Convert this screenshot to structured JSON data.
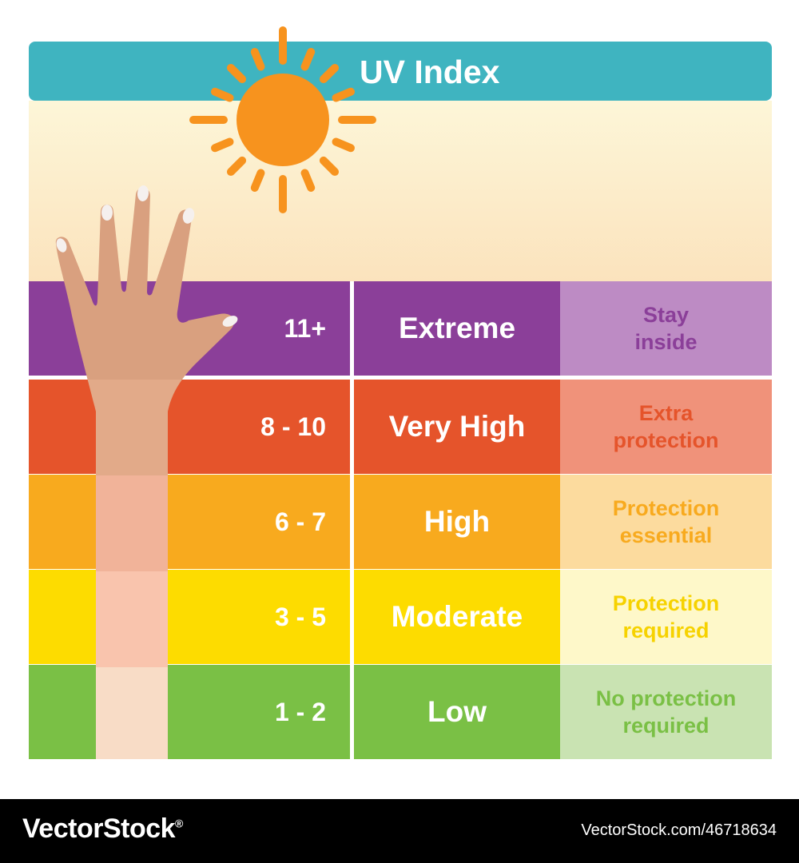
{
  "title": "UV Index",
  "colors": {
    "title_bar": "#3fb4c0",
    "sky_top": "#fdf6d8",
    "sky_bottom": "#fbe3bd",
    "sun": "#f7931e",
    "footer": "#000000"
  },
  "levels": [
    {
      "range": "11+",
      "level": "Extreme",
      "advice_line1": "Stay",
      "advice_line2": "inside",
      "main_color": "#8b3f99",
      "advice_bg": "#bd8bc4",
      "advice_color": "#8b3f99"
    },
    {
      "range": "8 - 10",
      "level": "Very High",
      "advice_line1": "Extra",
      "advice_line2": "protection",
      "main_color": "#e5542b",
      "advice_bg": "#f0927a",
      "advice_color": "#e5542b"
    },
    {
      "range": "6 - 7",
      "level": "High",
      "advice_line1": "Protection",
      "advice_line2": "essential",
      "main_color": "#f8aa1e",
      "advice_bg": "#fcdb9e",
      "advice_color": "#f8aa1e"
    },
    {
      "range": "3 - 5",
      "level": "Moderate",
      "advice_line1": "Protection",
      "advice_line2": "required",
      "main_color": "#fddc00",
      "advice_bg": "#fef8c9",
      "advice_color": "#f6d200"
    },
    {
      "range": "1 - 2",
      "level": "Low",
      "advice_line1": "No protection",
      "advice_line2": "required",
      "main_color": "#7ac045",
      "advice_bg": "#c9e3b2",
      "advice_color": "#7ac045"
    }
  ],
  "footer": {
    "brand": "VectorStock",
    "registered_mark": "®",
    "url": "VectorStock.com/46718634"
  }
}
